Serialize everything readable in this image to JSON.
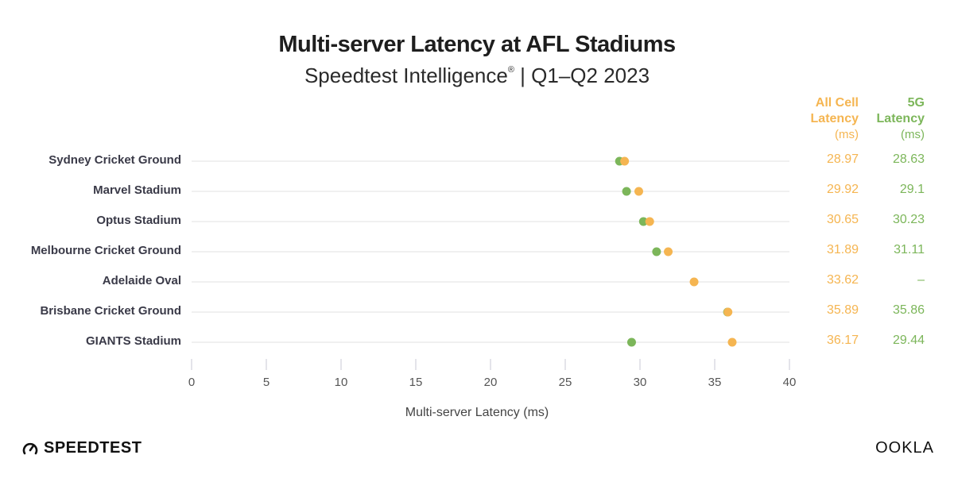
{
  "chart_data": {
    "type": "scatter",
    "title": "Multi-server Latency at AFL Stadiums",
    "subtitle_main": "Speedtest Intelligence",
    "subtitle_mark": "®",
    "subtitle_rest": " | Q1–Q2 2023",
    "xlabel": "Multi-server Latency (ms)",
    "ylabel": "",
    "xlim": [
      0,
      40
    ],
    "x_ticks": [
      "0",
      "5",
      "10",
      "15",
      "20",
      "25",
      "30",
      "35",
      "40"
    ],
    "x_tick_values": [
      0,
      5,
      10,
      15,
      20,
      25,
      30,
      35,
      40
    ],
    "grid": true,
    "categories": [
      "Sydney Cricket Ground",
      "Marvel Stadium",
      "Optus Stadium",
      "Melbourne Cricket Ground",
      "Adelaide Oval",
      "Brisbane Cricket Ground",
      "GIANTS Stadium"
    ],
    "series": [
      {
        "name": "5G Latency",
        "color": "#7cb65a",
        "values": [
          28.63,
          29.1,
          30.23,
          31.11,
          null,
          35.86,
          29.44
        ],
        "labels": [
          "28.63",
          "29.1",
          "30.23",
          "31.11",
          "–",
          "35.86",
          "29.44"
        ]
      },
      {
        "name": "All Cell Latency",
        "color": "#f5b551",
        "values": [
          28.97,
          29.92,
          30.65,
          31.89,
          33.62,
          35.89,
          36.17
        ],
        "labels": [
          "28.97",
          "29.92",
          "30.65",
          "31.89",
          "33.62",
          "35.89",
          "36.17"
        ]
      }
    ],
    "column_headers": {
      "all_cell": {
        "line1": "All Cell",
        "line2": "Latency",
        "unit": "(ms)"
      },
      "fiveg": {
        "line1": "5G",
        "line2": "Latency",
        "unit": "(ms)"
      }
    }
  },
  "footer": {
    "speedtest_logo": "SPEEDTEST",
    "speedtest_icon": "speedometer-icon",
    "ookla_logo": "OOKLA"
  }
}
